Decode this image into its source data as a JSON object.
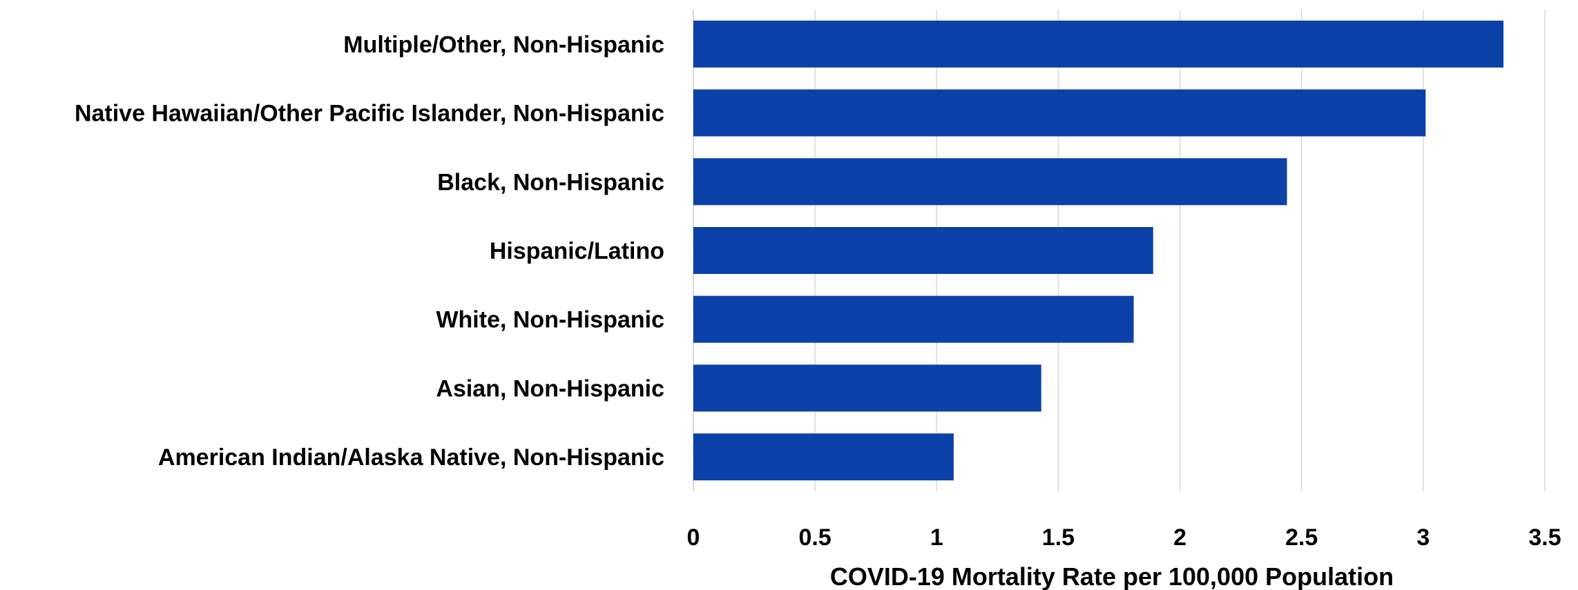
{
  "chart_data": {
    "type": "bar",
    "orientation": "horizontal",
    "title": "",
    "xlabel": "COVID-19 Mortality Rate per 100,000 Population",
    "ylabel": "",
    "categories": [
      "Multiple/Other, Non-Hispanic",
      "Native Hawaiian/Other Pacific Islander, Non-Hispanic",
      "Black, Non-Hispanic",
      "Hispanic/Latino",
      "White, Non-Hispanic",
      "Asian, Non-Hispanic",
      "American Indian/Alaska Native, Non-Hispanic"
    ],
    "values": [
      3.33,
      3.01,
      2.44,
      1.89,
      1.81,
      1.43,
      1.07
    ],
    "xlim": [
      0,
      3.5
    ],
    "xticks": [
      0,
      0.5,
      1,
      1.5,
      2,
      2.5,
      3,
      3.5
    ],
    "xtick_labels": [
      "0",
      "0.5",
      "1",
      "1.5",
      "2",
      "2.5",
      "3",
      "3.5"
    ],
    "grid": "vertical",
    "legend": "none",
    "colors": {
      "bar": "#0b41a8",
      "grid": "#d9d9d9",
      "text": "#000000"
    }
  }
}
